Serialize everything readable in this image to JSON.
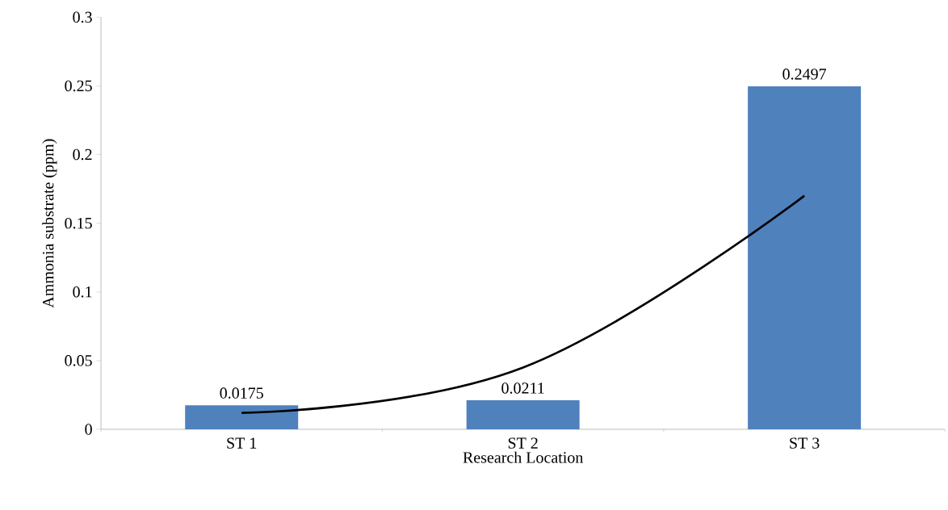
{
  "chart_data": {
    "type": "bar",
    "xlabel": "Research Location",
    "ylabel": "Ammonia substrate (ppm)",
    "categories": [
      "ST 1",
      "ST 2",
      "ST 3"
    ],
    "series": [
      {
        "color": "#4f81bd",
        "values": [
          0.0175,
          0.0211,
          0.2497
        ],
        "value_labels": [
          "0.0175",
          "0.0211",
          "0.2497"
        ]
      },
      {
        "type": "line",
        "color": "#000000",
        "values": [
          0.012,
          0.045,
          0.17
        ]
      }
    ],
    "ylim": [
      0,
      0.3
    ],
    "yticks": [
      0,
      0.05,
      0.1,
      0.15,
      0.2,
      0.25,
      0.3
    ],
    "grid": false
  }
}
